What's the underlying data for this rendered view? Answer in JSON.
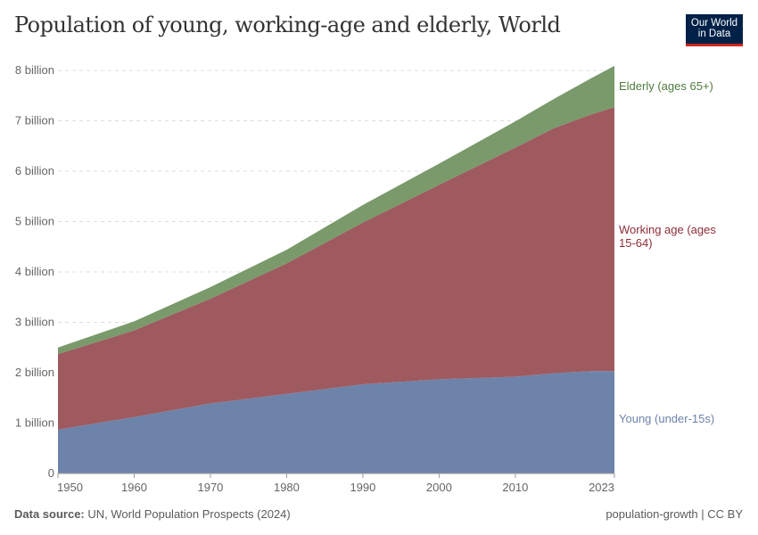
{
  "title": "Population of young, working-age and elderly, World",
  "logo": {
    "line1": "Our World",
    "line2": "in Data"
  },
  "footer": {
    "source_label": "Data source:",
    "source": "UN, World Population Prospects (2024)",
    "right": "population-growth | CC BY"
  },
  "chart_data": {
    "type": "area",
    "stacked": true,
    "title": "Population of young, working-age and elderly, World",
    "x": [
      1950,
      1960,
      1970,
      1980,
      1990,
      2000,
      2010,
      2015,
      2020,
      2023
    ],
    "series": [
      {
        "name": "Young (under-15s)",
        "color": "#6d83aa",
        "values": [
          0.87,
          1.12,
          1.39,
          1.58,
          1.77,
          1.87,
          1.92,
          1.99,
          2.03,
          2.03
        ]
      },
      {
        "name": "Working age (ages 15-64)",
        "name_lines": [
          "Working age (ages",
          "15-64)"
        ],
        "color": "#9e5a5f",
        "label_color": "#8c2d38",
        "values": [
          1.5,
          1.72,
          2.08,
          2.59,
          3.21,
          3.86,
          4.55,
          4.86,
          5.1,
          5.24
        ]
      },
      {
        "name": "Elderly (ages 65+)",
        "color": "#7a9a6b",
        "label_color": "#4f7a3e",
        "values": [
          0.13,
          0.18,
          0.23,
          0.27,
          0.35,
          0.42,
          0.52,
          0.58,
          0.72,
          0.82
        ]
      }
    ],
    "xticks": [
      "1950",
      "1960",
      "1970",
      "1980",
      "1990",
      "2000",
      "2010",
      "2023"
    ],
    "xtick_values": [
      1950,
      1960,
      1970,
      1980,
      1990,
      2000,
      2010,
      2023
    ],
    "yticks": [
      "0",
      "1 billion",
      "2 billion",
      "3 billion",
      "4 billion",
      "5 billion",
      "6 billion",
      "7 billion",
      "8 billion"
    ],
    "ylim": [
      0,
      8
    ],
    "xlim": [
      1950,
      2023
    ],
    "unit": "billion",
    "grid": "horizontal dashed",
    "legend": "right (inline labels)"
  }
}
